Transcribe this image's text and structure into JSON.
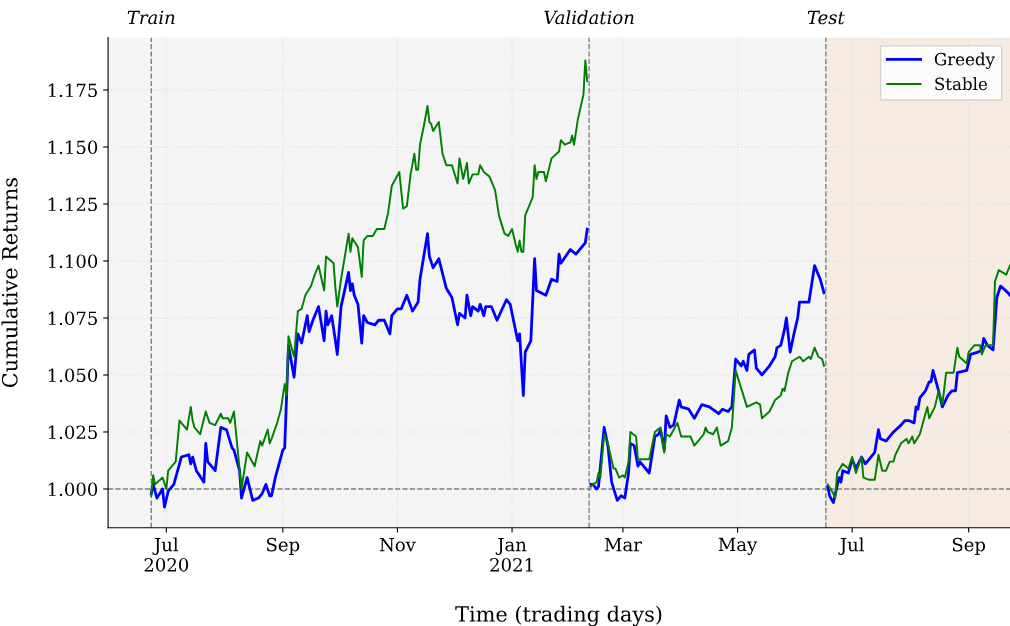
{
  "chart_data": {
    "type": "line",
    "xlabel": "Time (trading days)",
    "ylabel": "Cumulative Returns",
    "xlim": [
      "2020-05-31",
      "2021-09-23"
    ],
    "ylim": [
      0.983,
      1.198
    ],
    "xticks": [
      {
        "value": "2020-07-01",
        "label": "Jul\n2020"
      },
      {
        "value": "2020-09-01",
        "label": "Sep"
      },
      {
        "value": "2020-11-01",
        "label": "Nov"
      },
      {
        "value": "2021-01-01",
        "label": "Jan\n2021"
      },
      {
        "value": "2021-03-01",
        "label": "Mar"
      },
      {
        "value": "2021-05-01",
        "label": "May"
      },
      {
        "value": "2021-07-01",
        "label": "Jul"
      },
      {
        "value": "2021-09-01",
        "label": "Sep"
      }
    ],
    "yticks": [
      {
        "value": 1.0,
        "label": "1.000"
      },
      {
        "value": 1.025,
        "label": "1.025"
      },
      {
        "value": 1.05,
        "label": "1.050"
      },
      {
        "value": 1.075,
        "label": "1.075"
      },
      {
        "value": 1.1,
        "label": "1.100"
      },
      {
        "value": 1.125,
        "label": "1.125"
      },
      {
        "value": 1.15,
        "label": "1.150"
      },
      {
        "value": 1.175,
        "label": "1.175"
      }
    ],
    "grid": true,
    "legend": "top right",
    "line_style": "solid",
    "marker": "none",
    "ref_lines": [
      {
        "axis": "x",
        "value": "2020-06-23",
        "label": "Train",
        "color": "#808080",
        "line_style": "dashed"
      },
      {
        "axis": "x",
        "value": "2021-02-11",
        "label": "Validation",
        "color": "#808080",
        "line_style": "dashed"
      },
      {
        "axis": "x",
        "value": "2021-06-17",
        "label": "Test",
        "color": "#808080",
        "line_style": "dashed"
      },
      {
        "axis": "y",
        "value": 1.0,
        "color": "#808080",
        "line_style": "dashed"
      }
    ],
    "bands": [
      {
        "axis": "x",
        "from": "2020-05-31",
        "to": "2021-06-17",
        "color": "#f4f4f4"
      },
      {
        "axis": "x",
        "from": "2021-06-17",
        "to": "2021-09-23",
        "color": "#f5ebe2"
      }
    ],
    "series": [
      {
        "name": "Greedy",
        "color": "#0000ff",
        "x": [
          "2020-06-23",
          "2020-06-24",
          "2020-06-26",
          "2020-06-29",
          "2020-06-30",
          "2020-07-02",
          "2020-07-05",
          "2020-07-09",
          "2020-07-13",
          "2020-07-14",
          "2020-07-15",
          "2020-07-17",
          "2020-07-21",
          "2020-07-22",
          "2020-07-23",
          "2020-07-27",
          "2020-07-30",
          "2020-08-02",
          "2020-08-05",
          "2020-08-06",
          "2020-08-09",
          "2020-08-10",
          "2020-08-13",
          "2020-08-16",
          "2020-08-19",
          "2020-08-21",
          "2020-08-23",
          "2020-08-25",
          "2020-08-26",
          "2020-08-28",
          "2020-08-30",
          "2020-09-01",
          "2020-09-02",
          "2020-09-04",
          "2020-09-07",
          "2020-09-09",
          "2020-09-11",
          "2020-09-14",
          "2020-09-15",
          "2020-09-17",
          "2020-09-20",
          "2020-09-23",
          "2020-09-24",
          "2020-09-25",
          "2020-09-27",
          "2020-09-29",
          "2020-09-30",
          "2020-10-02",
          "2020-10-06",
          "2020-10-07",
          "2020-10-08",
          "2020-10-09",
          "2020-10-11",
          "2020-10-13",
          "2020-10-14",
          "2020-10-16",
          "2020-10-20",
          "2020-10-22",
          "2020-10-25",
          "2020-10-28",
          "2020-10-29",
          "2020-11-01",
          "2020-11-03",
          "2020-11-06",
          "2020-11-09",
          "2020-11-12",
          "2020-11-13",
          "2020-11-17",
          "2020-11-18",
          "2020-11-20",
          "2020-11-23",
          "2020-11-27",
          "2020-11-30",
          "2020-12-03",
          "2020-12-04",
          "2020-12-07",
          "2020-12-08",
          "2020-12-10",
          "2020-12-11",
          "2020-12-14",
          "2020-12-15",
          "2020-12-17",
          "2020-12-18",
          "2020-12-21",
          "2020-12-24",
          "2020-12-29",
          "2020-12-31",
          "2021-01-04",
          "2021-01-05",
          "2021-01-07",
          "2021-01-08",
          "2021-01-11",
          "2021-01-13",
          "2021-01-14",
          "2021-01-19",
          "2021-01-22",
          "2021-01-25",
          "2021-01-26",
          "2021-01-27",
          "2021-02-01",
          "2021-02-04",
          "2021-02-09",
          "2021-02-10",
          "2021-02-11",
          "2021-02-12",
          "2021-02-13",
          "2021-02-15",
          "2021-02-16",
          "2021-02-19",
          "2021-02-21",
          "2021-02-23",
          "2021-02-26",
          "2021-02-28",
          "2021-03-02",
          "2021-03-04",
          "2021-03-05",
          "2021-03-07",
          "2021-03-09",
          "2021-03-10",
          "2021-03-15",
          "2021-03-18",
          "2021-03-20",
          "2021-03-21",
          "2021-03-23",
          "2021-03-24",
          "2021-03-26",
          "2021-03-28",
          "2021-03-31",
          "2021-04-01",
          "2021-04-05",
          "2021-04-08",
          "2021-04-12",
          "2021-04-16",
          "2021-04-21",
          "2021-04-23",
          "2021-04-26",
          "2021-04-28",
          "2021-04-30",
          "2021-05-03",
          "2021-05-04",
          "2021-05-06",
          "2021-05-07",
          "2021-05-10",
          "2021-05-11",
          "2021-05-14",
          "2021-05-18",
          "2021-05-21",
          "2021-05-22",
          "2021-05-24",
          "2021-05-26",
          "2021-05-27",
          "2021-05-29",
          "2021-05-31",
          "2021-06-02",
          "2021-06-03",
          "2021-06-08",
          "2021-06-11",
          "2021-06-14",
          "2021-06-16",
          "2021-06-17",
          "2021-06-18",
          "2021-06-19",
          "2021-06-21",
          "2021-06-24",
          "2021-06-25",
          "2021-06-26",
          "2021-06-29",
          "2021-07-01",
          "2021-07-03",
          "2021-07-06",
          "2021-07-08",
          "2021-07-10",
          "2021-07-13",
          "2021-07-15",
          "2021-07-16",
          "2021-07-19",
          "2021-07-23",
          "2021-07-27",
          "2021-07-29",
          "2021-07-31",
          "2021-08-03",
          "2021-08-04",
          "2021-08-05",
          "2021-08-06",
          "2021-08-09",
          "2021-08-11",
          "2021-08-12",
          "2021-08-13",
          "2021-08-16",
          "2021-08-18",
          "2021-08-21",
          "2021-08-23",
          "2021-08-25",
          "2021-08-26",
          "2021-08-31",
          "2021-09-02",
          "2021-09-06",
          "2021-09-08",
          "2021-09-09",
          "2021-09-11",
          "2021-09-14",
          "2021-09-16",
          "2021-09-18",
          "2021-09-22",
          "2021-09-23"
        ],
        "values": [
          0.998,
          1.002,
          0.996,
          1.0,
          0.992,
          0.999,
          1.002,
          1.014,
          1.015,
          1.011,
          1.014,
          1.008,
          1.003,
          1.02,
          1.012,
          1.008,
          1.027,
          1.026,
          1.018,
          1.017,
          1.008,
          0.996,
          1.005,
          0.995,
          0.996,
          0.998,
          1.002,
          0.997,
          0.997,
          1.005,
          1.011,
          1.017,
          1.018,
          1.063,
          1.049,
          1.068,
          1.064,
          1.076,
          1.069,
          1.074,
          1.08,
          1.065,
          1.078,
          1.072,
          1.076,
          1.065,
          1.059,
          1.08,
          1.095,
          1.087,
          1.09,
          1.085,
          1.081,
          1.064,
          1.076,
          1.073,
          1.072,
          1.074,
          1.074,
          1.068,
          1.076,
          1.079,
          1.079,
          1.085,
          1.078,
          1.082,
          1.092,
          1.112,
          1.102,
          1.097,
          1.101,
          1.088,
          1.084,
          1.072,
          1.077,
          1.075,
          1.085,
          1.076,
          1.08,
          1.078,
          1.081,
          1.076,
          1.08,
          1.08,
          1.074,
          1.083,
          1.081,
          1.065,
          1.068,
          1.041,
          1.06,
          1.065,
          1.101,
          1.087,
          1.085,
          1.092,
          1.091,
          1.103,
          1.099,
          1.105,
          1.103,
          1.108,
          1.114,
          null,
          1.002,
          1.002,
          1.0,
          1.001,
          1.027,
          1.019,
          1.003,
          0.995,
          0.997,
          0.996,
          1.007,
          1.02,
          1.019,
          1.01,
          1.012,
          1.007,
          1.023,
          1.024,
          1.026,
          1.017,
          1.032,
          1.027,
          1.028,
          1.039,
          1.036,
          1.035,
          1.031,
          1.037,
          1.036,
          1.033,
          1.035,
          1.034,
          1.036,
          1.057,
          1.054,
          1.056,
          1.052,
          1.059,
          1.061,
          1.053,
          1.05,
          1.054,
          1.058,
          1.062,
          1.063,
          1.07,
          1.075,
          1.06,
          1.068,
          1.075,
          1.082,
          1.082,
          1.098,
          1.092,
          1.086,
          null,
          1.001,
          0.997,
          0.994,
          1.005,
          1.003,
          1.008,
          1.007,
          1.013,
          1.009,
          1.014,
          1.011,
          1.013,
          1.016,
          1.026,
          1.022,
          1.021,
          1.025,
          1.028,
          1.03,
          1.03,
          1.029,
          1.036,
          1.035,
          1.04,
          1.043,
          1.047,
          1.047,
          1.052,
          1.043,
          1.036,
          1.041,
          1.043,
          1.043,
          1.051,
          1.052,
          1.059,
          1.06,
          1.061,
          1.066,
          1.063,
          1.061,
          1.084,
          1.089,
          1.086,
          1.085
        ]
      },
      {
        "name": "Stable",
        "color": "#008000",
        "x": [
          "2020-06-23",
          "2020-06-24",
          "2020-06-25",
          "2020-06-29",
          "2020-07-01",
          "2020-07-02",
          "2020-07-06",
          "2020-07-08",
          "2020-07-12",
          "2020-07-14",
          "2020-07-15",
          "2020-07-16",
          "2020-07-19",
          "2020-07-22",
          "2020-07-24",
          "2020-07-27",
          "2020-07-30",
          "2020-07-31",
          "2020-08-03",
          "2020-08-04",
          "2020-08-06",
          "2020-08-10",
          "2020-08-13",
          "2020-08-17",
          "2020-08-20",
          "2020-08-21",
          "2020-08-24",
          "2020-08-25",
          "2020-08-26",
          "2020-08-29",
          "2020-08-31",
          "2020-09-02",
          "2020-09-03",
          "2020-09-04",
          "2020-09-07",
          "2020-09-09",
          "2020-09-11",
          "2020-09-13",
          "2020-09-16",
          "2020-09-18",
          "2020-09-20",
          "2020-09-23",
          "2020-09-24",
          "2020-09-28",
          "2020-09-29",
          "2020-09-30",
          "2020-10-02",
          "2020-10-06",
          "2020-10-07",
          "2020-10-08",
          "2020-10-11",
          "2020-10-13",
          "2020-10-14",
          "2020-10-16",
          "2020-10-19",
          "2020-10-21",
          "2020-10-25",
          "2020-10-27",
          "2020-10-29",
          "2020-11-02",
          "2020-11-04",
          "2020-11-06",
          "2020-11-08",
          "2020-11-10",
          "2020-11-11",
          "2020-11-12",
          "2020-11-13",
          "2020-11-15",
          "2020-11-17",
          "2020-11-18",
          "2020-11-19",
          "2020-11-20",
          "2020-11-23",
          "2020-11-25",
          "2020-11-27",
          "2020-11-30",
          "2020-12-03",
          "2020-12-04",
          "2020-12-06",
          "2020-12-08",
          "2020-12-09",
          "2020-12-11",
          "2020-12-14",
          "2020-12-15",
          "2020-12-17",
          "2020-12-20",
          "2020-12-23",
          "2020-12-25",
          "2020-12-28",
          "2020-12-30",
          "2021-01-01",
          "2021-01-03",
          "2021-01-04",
          "2021-01-05",
          "2021-01-06",
          "2021-01-07",
          "2021-01-08",
          "2021-01-12",
          "2021-01-13",
          "2021-01-14",
          "2021-01-15",
          "2021-01-18",
          "2021-01-19",
          "2021-01-22",
          "2021-01-26",
          "2021-01-27",
          "2021-01-29",
          "2021-02-01",
          "2021-02-02",
          "2021-02-03",
          "2021-02-05",
          "2021-02-08",
          "2021-02-09",
          "2021-02-10",
          "2021-02-11",
          "2021-02-12",
          "2021-02-13",
          "2021-02-15",
          "2021-02-16",
          "2021-02-17",
          "2021-02-19",
          "2021-02-21",
          "2021-02-24",
          "2021-02-25",
          "2021-02-27",
          "2021-03-01",
          "2021-03-02",
          "2021-03-04",
          "2021-03-05",
          "2021-03-08",
          "2021-03-09",
          "2021-03-12",
          "2021-03-15",
          "2021-03-18",
          "2021-03-21",
          "2021-03-23",
          "2021-03-24",
          "2021-03-26",
          "2021-03-30",
          "2021-04-01",
          "2021-04-06",
          "2021-04-08",
          "2021-04-11",
          "2021-04-13",
          "2021-04-14",
          "2021-04-15",
          "2021-04-18",
          "2021-04-20",
          "2021-04-22",
          "2021-04-26",
          "2021-04-28",
          "2021-04-30",
          "2021-05-03",
          "2021-05-06",
          "2021-05-11",
          "2021-05-13",
          "2021-05-14",
          "2021-05-18",
          "2021-05-21",
          "2021-05-24",
          "2021-05-25",
          "2021-05-26",
          "2021-05-28",
          "2021-05-30",
          "2021-06-03",
          "2021-06-05",
          "2021-06-08",
          "2021-06-09",
          "2021-06-11",
          "2021-06-13",
          "2021-06-15",
          "2021-06-16",
          "2021-06-17",
          "2021-06-18",
          "2021-06-21",
          "2021-06-22",
          "2021-06-23",
          "2021-06-26",
          "2021-06-29",
          "2021-07-01",
          "2021-07-03",
          "2021-07-06",
          "2021-07-07",
          "2021-07-10",
          "2021-07-13",
          "2021-07-15",
          "2021-07-17",
          "2021-07-19",
          "2021-07-21",
          "2021-07-23",
          "2021-07-24",
          "2021-07-27",
          "2021-07-30",
          "2021-07-31",
          "2021-08-02",
          "2021-08-03",
          "2021-08-06",
          "2021-08-10",
          "2021-08-11",
          "2021-08-14",
          "2021-08-16",
          "2021-08-18",
          "2021-08-20",
          "2021-08-24",
          "2021-08-26",
          "2021-08-27",
          "2021-08-31",
          "2021-09-01",
          "2021-09-04",
          "2021-09-07",
          "2021-09-08",
          "2021-09-10",
          "2021-09-14",
          "2021-09-15",
          "2021-09-17",
          "2021-09-21",
          "2021-09-23"
        ],
        "values": [
          0.997,
          1.006,
          1.002,
          1.005,
          1.0,
          1.008,
          1.012,
          1.03,
          1.026,
          1.036,
          1.03,
          1.027,
          1.024,
          1.034,
          1.029,
          1.028,
          1.033,
          1.031,
          1.031,
          1.029,
          1.034,
          1.0,
          1.016,
          1.01,
          1.021,
          1.019,
          1.026,
          1.02,
          1.022,
          1.029,
          1.035,
          1.046,
          1.041,
          1.067,
          1.058,
          1.078,
          1.079,
          1.085,
          1.089,
          1.094,
          1.098,
          1.087,
          1.102,
          1.099,
          1.088,
          1.08,
          1.092,
          1.112,
          1.104,
          1.11,
          1.106,
          1.093,
          1.109,
          1.111,
          1.111,
          1.114,
          1.114,
          1.121,
          1.133,
          1.139,
          1.123,
          1.124,
          1.138,
          1.147,
          1.14,
          1.14,
          1.151,
          1.159,
          1.168,
          1.161,
          1.16,
          1.157,
          1.161,
          1.147,
          1.142,
          1.142,
          1.134,
          1.145,
          1.136,
          1.143,
          1.134,
          1.138,
          1.138,
          1.142,
          1.139,
          1.137,
          1.131,
          1.12,
          1.112,
          1.111,
          1.114,
          1.107,
          1.104,
          1.109,
          1.104,
          1.104,
          1.12,
          1.128,
          1.142,
          1.136,
          1.139,
          1.139,
          1.135,
          1.145,
          1.148,
          1.153,
          1.151,
          1.152,
          1.155,
          1.151,
          1.162,
          1.173,
          1.188,
          1.179,
          null,
          1.001,
          1.002,
          1.003,
          1.007,
          1.005,
          1.024,
          1.02,
          1.009,
          1.009,
          1.005,
          1.006,
          1.005,
          1.012,
          1.025,
          1.023,
          1.013,
          1.013,
          1.013,
          1.025,
          1.027,
          1.016,
          1.024,
          1.023,
          1.029,
          1.023,
          1.023,
          1.019,
          1.022,
          1.024,
          1.027,
          1.025,
          1.024,
          1.027,
          1.019,
          1.021,
          1.027,
          1.052,
          1.044,
          1.036,
          1.038,
          1.037,
          1.031,
          1.034,
          1.039,
          1.041,
          1.044,
          1.043,
          1.051,
          1.056,
          1.058,
          1.056,
          1.058,
          1.057,
          1.062,
          1.058,
          1.057,
          1.054,
          null,
          1.002,
          0.998,
          0.996,
          1.007,
          1.011,
          1.009,
          1.014,
          1.007,
          1.014,
          1.005,
          1.004,
          1.004,
          1.015,
          1.008,
          1.008,
          1.012,
          1.012,
          1.015,
          1.02,
          1.022,
          1.02,
          1.023,
          1.02,
          1.024,
          1.036,
          1.031,
          1.036,
          1.043,
          1.037,
          1.051,
          1.051,
          1.062,
          1.058,
          1.055,
          1.06,
          1.063,
          1.063,
          1.059,
          1.063,
          1.063,
          1.091,
          1.096,
          1.094,
          1.098
        ]
      }
    ]
  }
}
